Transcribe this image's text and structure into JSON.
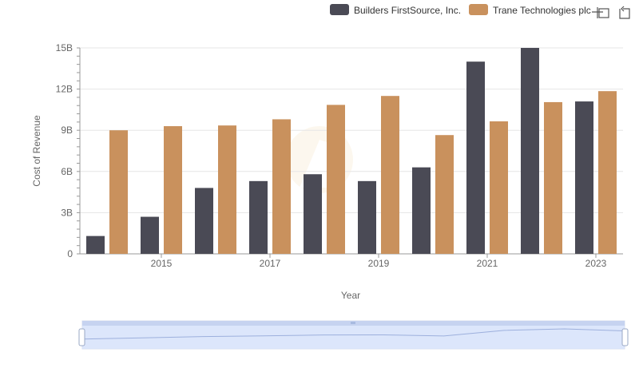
{
  "toolbar": {
    "zoom_icon": "zoom-select-icon",
    "reset_icon": "restore-icon"
  },
  "legend": {
    "position": "top-right"
  },
  "chart_data": {
    "type": "bar",
    "x": [
      2014,
      2015,
      2016,
      2017,
      2018,
      2019,
      2020,
      2021,
      2022,
      2023
    ],
    "xlabel": "Year",
    "ylabel": "Cost of Revenue",
    "ylim": [
      0,
      15000000000
    ],
    "y_ticks": [
      {
        "value": 0,
        "label": "0"
      },
      {
        "value": 3000000000,
        "label": "3B"
      },
      {
        "value": 6000000000,
        "label": "6B"
      },
      {
        "value": 9000000000,
        "label": "9B"
      },
      {
        "value": 12000000000,
        "label": "12B"
      },
      {
        "value": 15000000000,
        "label": "15B"
      }
    ],
    "x_ticks": [
      {
        "value": 2015,
        "label": "2015"
      },
      {
        "value": 2017,
        "label": "2017"
      },
      {
        "value": 2019,
        "label": "2019"
      },
      {
        "value": 2021,
        "label": "2021"
      },
      {
        "value": 2023,
        "label": "2023"
      }
    ],
    "grid": "horizontal",
    "series": [
      {
        "name": "Builders FirstSource, Inc.",
        "color": "#4a4a55",
        "values": [
          1300000000,
          2700000000,
          4800000000,
          5300000000,
          5800000000,
          5300000000,
          6300000000,
          14000000000,
          15000000000,
          11100000000
        ]
      },
      {
        "name": "Trane Technologies plc",
        "color": "#c9915d",
        "values": [
          9000000000,
          9300000000,
          9350000000,
          9800000000,
          10850000000,
          11500000000,
          8650000000,
          9650000000,
          11050000000,
          11850000000
        ]
      }
    ]
  }
}
